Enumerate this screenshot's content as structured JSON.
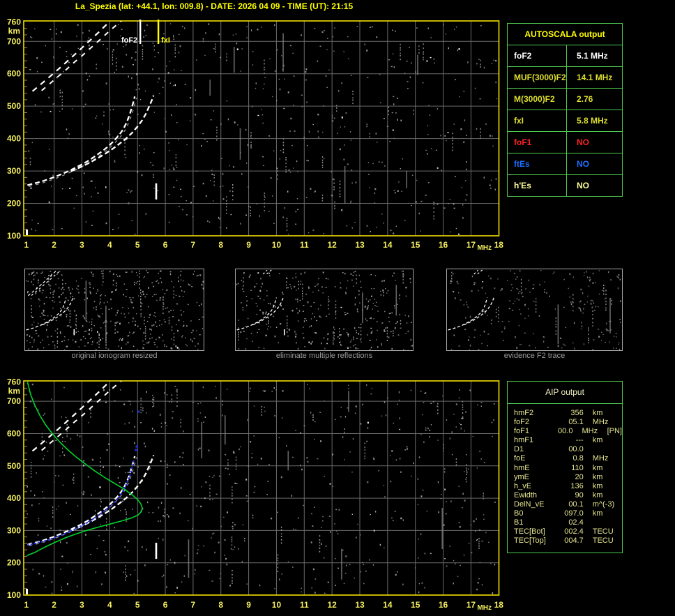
{
  "header": {
    "title": "La_Spezia (lat: +44.1, lon: 009.8) - DATE: 2026 04 09 - TIME (UT): 21:15"
  },
  "colors": {
    "background": "#000000",
    "title": "#ffff00",
    "plot_border": "#f2e000",
    "grid": "#6a6a6a",
    "axis_label": "#f5f060",
    "trace_white": "#ffffff",
    "trace_gray": "#9a9a9a",
    "noise_gray": "#8a8a8a",
    "marker_fof2": "#ffffff",
    "marker_fxi": "#ffff00",
    "profile_green": "#00d42c",
    "fitted_blue": "#2230f0",
    "table_border": "#4ecb4e",
    "caption_gray": "#9c9c9c",
    "aip_text": "#e6e692"
  },
  "autoscala": {
    "title": "AUTOSCALA output",
    "rows": [
      {
        "label": "foF2",
        "value": "5.1 MHz",
        "color": "#ffffff"
      },
      {
        "label": "MUF(3000)F2",
        "value": "14.1 MHz",
        "color": "#dede2e"
      },
      {
        "label": "M(3000)F2",
        "value": "2.76",
        "color": "#dede2e"
      },
      {
        "label": "fxI",
        "value": "5.8 MHz",
        "color": "#dede2e"
      },
      {
        "label": "foF1",
        "value": "NO",
        "color": "#ff2222"
      },
      {
        "label": "ftEs",
        "value": "NO",
        "color": "#1f6fff"
      },
      {
        "label": "h'Es",
        "value": "NO",
        "color": "#ffff99"
      }
    ]
  },
  "aip": {
    "title": "AIP output",
    "rows": [
      {
        "label": "hmF2",
        "value": "356",
        "unit": "km",
        "note": ""
      },
      {
        "label": "foF2",
        "value": "05.1",
        "unit": "MHz",
        "note": ""
      },
      {
        "label": "foF1",
        "value": "00.0",
        "unit": "MHz",
        "note": "[PN]"
      },
      {
        "label": "hmF1",
        "value": "---",
        "unit": "km",
        "note": ""
      },
      {
        "label": "D1",
        "value": "00.0",
        "unit": "",
        "note": ""
      },
      {
        "label": "foE",
        "value": "0.8",
        "unit": "MHz",
        "note": ""
      },
      {
        "label": "hmE",
        "value": "110",
        "unit": "km",
        "note": ""
      },
      {
        "label": "ymE",
        "value": "20",
        "unit": "km",
        "note": ""
      },
      {
        "label": "h_vE",
        "value": "136",
        "unit": "km",
        "note": ""
      },
      {
        "label": "Ewidth",
        "value": "90",
        "unit": "km",
        "note": ""
      },
      {
        "label": "DelN_vE",
        "value": "00.1",
        "unit": "m^(-3)",
        "note": ""
      },
      {
        "label": "B0",
        "value": "097.0",
        "unit": "km",
        "note": ""
      },
      {
        "label": "B1",
        "value": "02.4",
        "unit": "",
        "note": ""
      },
      {
        "label": "TEC[Bot]",
        "value": "002.4",
        "unit": "TECU",
        "note": ""
      },
      {
        "label": "TEC[Top]",
        "value": "004.7",
        "unit": "TECU",
        "note": ""
      }
    ]
  },
  "thumbnails": [
    {
      "caption": "original ionogram resized"
    },
    {
      "caption": "eliminate multiple reflections"
    },
    {
      "caption": "evidence F2 trace"
    }
  ],
  "chart_data": [
    {
      "id": "ionogram_top",
      "type": "scatter",
      "title": "",
      "xlabel": "MHz",
      "ylabel": "km",
      "x_range": [
        1,
        18
      ],
      "y_range": [
        100,
        763
      ],
      "x_ticks": [
        1,
        2,
        3,
        4,
        5,
        6,
        7,
        8,
        9,
        10,
        11,
        12,
        13,
        14,
        15,
        16,
        17,
        18
      ],
      "y_ticks": [
        760,
        700,
        600,
        500,
        400,
        300,
        200,
        100
      ],
      "grid": true,
      "markers": [
        {
          "name": "foF2",
          "f_mhz": 5.1,
          "color": "#ffffff"
        },
        {
          "name": "fxI",
          "f_mhz": 5.75,
          "color": "#ffff00"
        }
      ],
      "series": {
        "f2_ordinary": [
          [
            1.04,
            256
          ],
          [
            1.2,
            260
          ],
          [
            1.4,
            264
          ],
          [
            1.6,
            269
          ],
          [
            1.8,
            275
          ],
          [
            2.0,
            281
          ],
          [
            2.2,
            288
          ],
          [
            2.45,
            297
          ],
          [
            2.7,
            307
          ],
          [
            2.95,
            318
          ],
          [
            3.2,
            330
          ],
          [
            3.45,
            344
          ],
          [
            3.7,
            359
          ],
          [
            3.95,
            376
          ],
          [
            4.15,
            393
          ],
          [
            4.35,
            412
          ],
          [
            4.5,
            431
          ],
          [
            4.62,
            452
          ],
          [
            4.72,
            474
          ],
          [
            4.8,
            497
          ],
          [
            4.86,
            515
          ],
          [
            4.9,
            530
          ]
        ],
        "f2_extraordinary": [
          [
            2.6,
            299
          ],
          [
            2.85,
            308
          ],
          [
            3.1,
            318
          ],
          [
            3.35,
            329
          ],
          [
            3.6,
            341
          ],
          [
            3.85,
            354
          ],
          [
            4.1,
            368
          ],
          [
            4.35,
            384
          ],
          [
            4.6,
            401
          ],
          [
            4.82,
            419
          ],
          [
            5.0,
            437
          ],
          [
            5.17,
            457
          ],
          [
            5.31,
            478
          ],
          [
            5.42,
            499
          ],
          [
            5.51,
            517
          ],
          [
            5.58,
            533
          ]
        ],
        "multihop_a": [
          [
            1.22,
            546
          ],
          [
            1.5,
            566
          ],
          [
            1.8,
            588
          ],
          [
            2.1,
            610
          ],
          [
            2.4,
            633
          ],
          [
            2.7,
            656
          ],
          [
            3.0,
            680
          ],
          [
            3.3,
            704
          ],
          [
            3.6,
            728
          ],
          [
            3.85,
            749
          ],
          [
            4.0,
            762
          ]
        ],
        "multihop_b": [
          [
            1.55,
            548
          ],
          [
            1.85,
            570
          ],
          [
            2.15,
            592
          ],
          [
            2.45,
            614
          ],
          [
            2.75,
            637
          ],
          [
            3.05,
            659
          ],
          [
            3.35,
            682
          ],
          [
            3.65,
            705
          ],
          [
            3.95,
            729
          ],
          [
            4.25,
            751
          ],
          [
            4.42,
            763
          ]
        ],
        "echo_segment": {
          "f_mhz": 5.67,
          "h_from": 212,
          "h_to": 262
        }
      }
    },
    {
      "id": "ionogram_bottom_with_profile",
      "type": "scatter",
      "title": "",
      "xlabel": "MHz",
      "ylabel": "km",
      "x_range": [
        1,
        18
      ],
      "y_range": [
        100,
        763
      ],
      "x_ticks": [
        1,
        2,
        3,
        4,
        5,
        6,
        7,
        8,
        9,
        10,
        11,
        12,
        13,
        14,
        15,
        16,
        17,
        18
      ],
      "y_ticks": [
        760,
        700,
        600,
        500,
        400,
        300,
        200,
        100
      ],
      "grid": true,
      "includes_ionogram_traces_of": "ionogram_top",
      "series": {
        "electron_density_profile": [
          [
            1.04,
            760
          ],
          [
            1.15,
            722
          ],
          [
            1.3,
            688
          ],
          [
            1.5,
            654
          ],
          [
            1.7,
            626
          ],
          [
            1.95,
            598
          ],
          [
            2.2,
            574
          ],
          [
            2.5,
            549
          ],
          [
            2.8,
            527
          ],
          [
            3.1,
            507
          ],
          [
            3.45,
            485
          ],
          [
            3.8,
            465
          ],
          [
            4.15,
            447
          ],
          [
            4.5,
            429
          ],
          [
            4.8,
            411
          ],
          [
            5.0,
            396
          ],
          [
            5.12,
            382
          ],
          [
            5.17,
            370
          ],
          [
            5.14,
            358
          ],
          [
            5.02,
            348
          ],
          [
            4.8,
            339
          ],
          [
            4.5,
            331
          ],
          [
            4.15,
            323
          ],
          [
            3.8,
            315
          ],
          [
            3.45,
            307
          ],
          [
            3.1,
            298
          ],
          [
            2.75,
            288
          ],
          [
            2.4,
            277
          ],
          [
            2.05,
            264
          ],
          [
            1.75,
            252
          ],
          [
            1.5,
            241
          ],
          [
            1.3,
            232
          ],
          [
            1.12,
            226
          ],
          [
            1.02,
            222
          ]
        ],
        "fitted_trace": [
          [
            1.04,
            254
          ],
          [
            1.25,
            259
          ],
          [
            1.5,
            264
          ],
          [
            1.75,
            270
          ],
          [
            2.0,
            277
          ],
          [
            2.25,
            285
          ],
          [
            2.5,
            294
          ],
          [
            2.75,
            304
          ],
          [
            3.0,
            315
          ],
          [
            3.25,
            327
          ],
          [
            3.5,
            341
          ],
          [
            3.75,
            356
          ],
          [
            4.0,
            373
          ],
          [
            4.2,
            390
          ],
          [
            4.38,
            409
          ],
          [
            4.52,
            429
          ],
          [
            4.64,
            451
          ],
          [
            4.74,
            475
          ],
          [
            4.82,
            499
          ],
          [
            4.88,
            521
          ]
        ],
        "fitted_extra_points": [
          [
            4.94,
            549
          ],
          [
            4.97,
            560
          ],
          [
            5.04,
            668
          ]
        ]
      }
    }
  ]
}
